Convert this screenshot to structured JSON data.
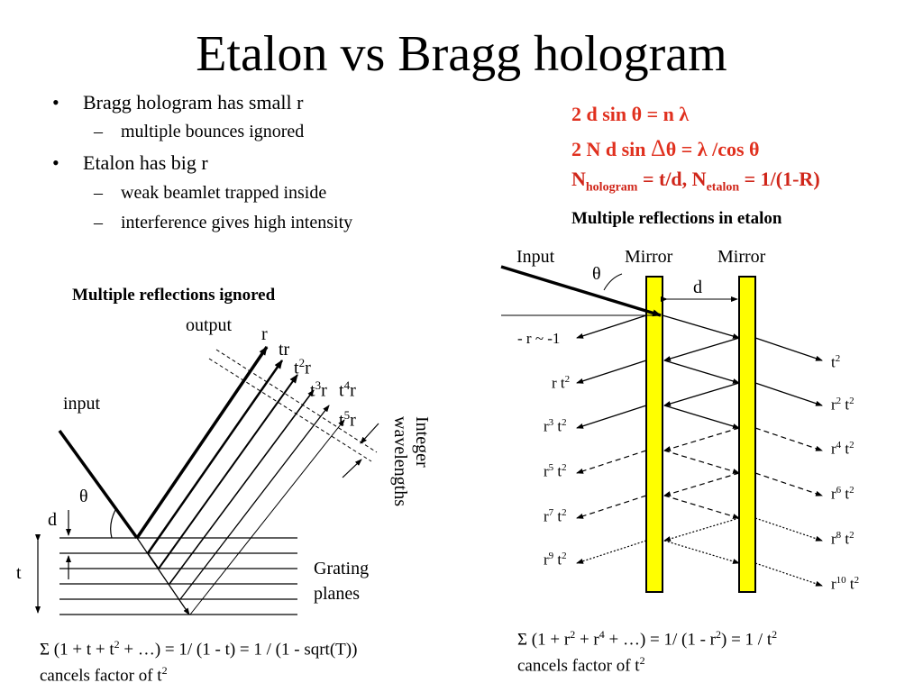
{
  "title": "Etalon vs Bragg hologram",
  "bullets": [
    {
      "level": 1,
      "text": "Bragg hologram has small r"
    },
    {
      "level": 2,
      "text": "multiple bounces ignored"
    },
    {
      "level": 1,
      "text": "Etalon has big r"
    },
    {
      "level": 2,
      "text": "weak beamlet trapped inside"
    },
    {
      "level": 2,
      "text": "interference gives high intensity"
    }
  ],
  "bullet_marks": {
    "l1": "•",
    "l2": "–"
  },
  "equations": {
    "line1": "2 d sin θ = n λ",
    "line2_a": "2 N d sin ",
    "line2_delta": "Δ",
    "line2_b": "θ = λ /cos θ",
    "line3_N1": "N",
    "line3_sub1": "hologram",
    "line3_mid": " = t/d, N",
    "line3_sub2": "etalon",
    "line3_end": " = 1/(1-R)"
  },
  "bragg": {
    "heading": "Multiple reflections ignored",
    "output": "output",
    "input": "input",
    "theta": "θ",
    "d": "d",
    "t": "t",
    "planes": [
      "Grating",
      "planes"
    ],
    "wave_label": [
      "Integer",
      "wavelengths"
    ],
    "beams": [
      {
        "base": "r",
        "sup": ""
      },
      {
        "base": "tr",
        "sup": ""
      },
      {
        "base": "t",
        "sup": "2",
        "tail": "r"
      },
      {
        "base": "t",
        "sup": "3",
        "tail": "r"
      },
      {
        "base": "t",
        "sup": "4",
        "tail": "r"
      },
      {
        "base": "t",
        "sup": "5",
        "tail": "r"
      }
    ],
    "sum_line": "Σ (1 + t + t",
    "sum_sup": "2",
    "sum_rest": " + …) = 1/ (1 - t) = 1 / (1 - sqrt(T))",
    "cancel": "cancels factor of t",
    "cancel_sup": "2"
  },
  "etalon": {
    "heading": "Multiple reflections in etalon",
    "input": "Input",
    "mirror1": "Mirror",
    "mirror2": "Mirror",
    "theta": "θ",
    "d": "d",
    "left_labels": [
      {
        "base": "- r ~ -1",
        "sup": "",
        "tail": ""
      },
      {
        "base": "r t",
        "sup": "2",
        "tail": ""
      },
      {
        "base": "r",
        "sup": "3",
        "tail": " t",
        "sup2": "2"
      },
      {
        "base": "r",
        "sup": "5",
        "tail": " t",
        "sup2": "2"
      },
      {
        "base": "r",
        "sup": "7",
        "tail": " t",
        "sup2": "2"
      },
      {
        "base": "r",
        "sup": "9",
        "tail": " t",
        "sup2": "2"
      }
    ],
    "right_labels": [
      {
        "base": "t",
        "sup": "2",
        "tail": "",
        "sup2": ""
      },
      {
        "base": "r",
        "sup": "2",
        "tail": " t",
        "sup2": "2"
      },
      {
        "base": "r",
        "sup": "4",
        "tail": " t",
        "sup2": "2"
      },
      {
        "base": "r",
        "sup": "6",
        "tail": " t",
        "sup2": "2"
      },
      {
        "base": "r",
        "sup": "8",
        "tail": " t",
        "sup2": "2"
      },
      {
        "base": "r",
        "sup": "10",
        "tail": " t",
        "sup2": "2"
      }
    ],
    "mirror_color": "#ffff00",
    "sum_line": "Σ (1 + r",
    "sum_sup1": "2",
    "sum_mid": " + r",
    "sum_sup2": "4",
    "sum_rest": " + …) = 1/ (1 - r",
    "sum_sup3": "2",
    "sum_end": ") = 1 / t",
    "sum_sup4": "2",
    "cancel": "cancels factor of t",
    "cancel_sup": "2"
  }
}
